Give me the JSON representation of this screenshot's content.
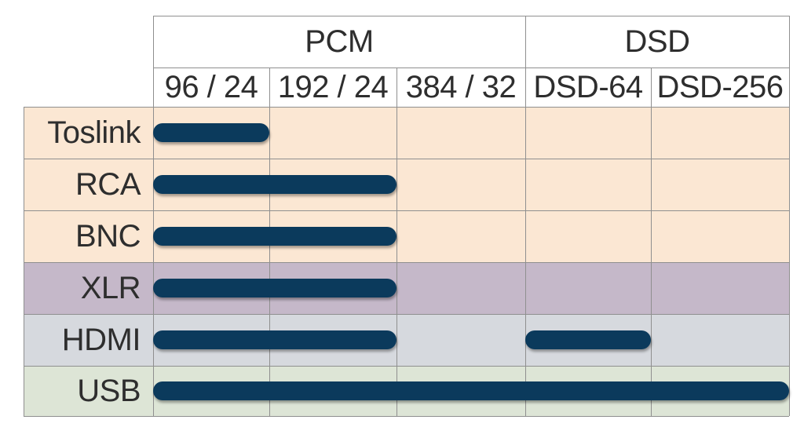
{
  "groups": [
    {
      "label": "PCM",
      "span": 3
    },
    {
      "label": "DSD",
      "span": 2
    }
  ],
  "columns": [
    "96 / 24",
    "192 / 24",
    "384 / 32",
    "DSD-64",
    "DSD-256"
  ],
  "rows": [
    {
      "label": "Toslink",
      "color": "#fbe7d3",
      "segments": [
        [
          0,
          1
        ]
      ]
    },
    {
      "label": "RCA",
      "color": "#fbe7d3",
      "segments": [
        [
          0,
          2
        ]
      ]
    },
    {
      "label": "BNC",
      "color": "#fbe7d3",
      "segments": [
        [
          0,
          2
        ]
      ]
    },
    {
      "label": "XLR",
      "color": "#c5b8c9",
      "segments": [
        [
          0,
          2
        ]
      ]
    },
    {
      "label": "HDMI",
      "color": "#d6d9de",
      "segments": [
        [
          0,
          2
        ],
        [
          3,
          4
        ]
      ]
    },
    {
      "label": "USB",
      "color": "#dde5d6",
      "segments": [
        [
          0,
          5
        ]
      ]
    }
  ],
  "colors": {
    "bar": "#0b3a5c",
    "grid": "#8f8f8f",
    "text": "#2e2e2e",
    "header_bg": "#ffffff"
  }
}
